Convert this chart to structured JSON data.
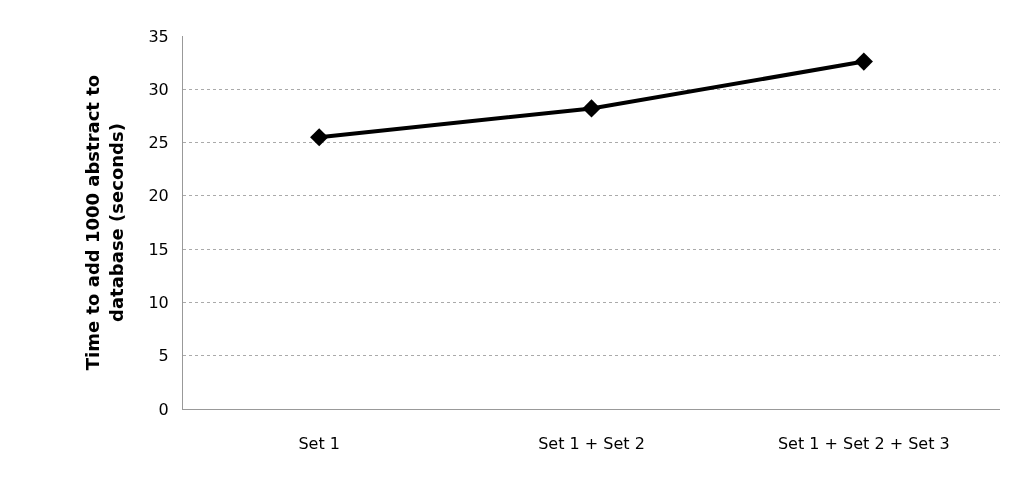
{
  "chart_data": {
    "type": "line",
    "ylabel": "Time to add 1000 abstract to database (seconds)",
    "categories": [
      "Set 1",
      "Set 1 + Set 2",
      "Set 1 + Set 2 + Set 3"
    ],
    "series": [
      {
        "color": "#000000",
        "values": [
          25.5,
          28.2,
          32.6
        ]
      }
    ],
    "ylim": [
      0,
      35
    ],
    "yticks": [
      0,
      5,
      10,
      15,
      20,
      25,
      30,
      35
    ],
    "grid": "y",
    "legend": false,
    "marker": "diamond",
    "line_style": "solid"
  }
}
